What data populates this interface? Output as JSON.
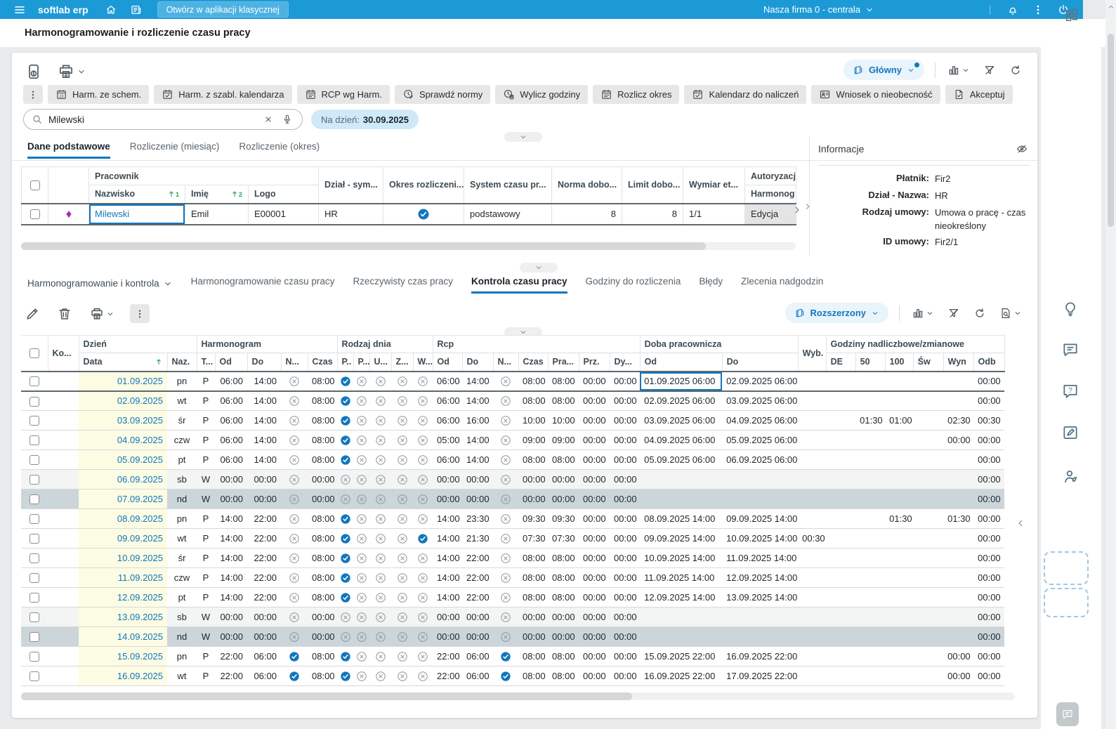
{
  "topbar": {
    "brand": "softlab erp",
    "classic_button": "Otwórz w aplikacji klasycznej",
    "company": "Nasza firma 0 - centrala"
  },
  "page": {
    "title": "Harmonogramowanie i rozliczenie czasu pracy"
  },
  "toolbar_main": {
    "view_label": "Główny",
    "buttons": [
      {
        "name": "harm-ze-schem-button",
        "icon": "calendar-number-icon",
        "label": "Harm. ze schem."
      },
      {
        "name": "harm-z-szabl-kalendarza-button",
        "icon": "calendar-check-icon",
        "label": "Harm. z szabl. kalendarza"
      },
      {
        "name": "rcp-wg-harm-button",
        "icon": "calendar-grid-icon",
        "label": "RCP wg Harm."
      },
      {
        "name": "sprawdz-normy-button",
        "icon": "clock-check-icon",
        "label": "Sprawdź normy"
      },
      {
        "name": "wylicz-godziny-button",
        "icon": "clock-calculator-icon",
        "label": "Wylicz godziny"
      },
      {
        "name": "rozlicz-okres-button",
        "icon": "calendar-grid-icon",
        "label": "Rozlicz okres"
      },
      {
        "name": "kalendarz-do-naliczen-button",
        "icon": "calendar-check-icon",
        "label": "Kalendarz do naliczeń"
      },
      {
        "name": "wniosek-o-nieobecnosc-button",
        "icon": "person-card-icon",
        "label": "Wniosek o nieobecność"
      },
      {
        "name": "akceptuj-button",
        "icon": "document-check-icon",
        "label": "Akceptuj"
      }
    ]
  },
  "search": {
    "value": "Milewski",
    "chip_label": "Na dzień:",
    "chip_value": "30.09.2025"
  },
  "upper_tabs": [
    {
      "label": "Dane podstawowe",
      "active": true
    },
    {
      "label": "Rozliczenie (miesiąc)",
      "active": false
    },
    {
      "label": "Rozliczenie (okres)",
      "active": false
    }
  ],
  "employee_table": {
    "group_header": "Pracownik",
    "headers": {
      "nazwisko": "Nazwisko",
      "imie": "Imię",
      "logo": "Logo",
      "dzial": "Dział - sym...",
      "okres": "Okres rozliczeni...",
      "system": "System czasu pr...",
      "norma": "Norma dobo...",
      "limit": "Limit dobo...",
      "wymiar": "Wymiar et...",
      "autoryzacja_g": "Autoryzacj",
      "autoryzacja_s": "Harmonog"
    },
    "sort": {
      "nazwisko": "1",
      "imie": "2"
    },
    "row": {
      "nazwisko": "Milewski",
      "imie": "Emil",
      "logo": "E00001",
      "dzial": "HR",
      "okres_check": true,
      "system": "podstawowy",
      "norma": "8",
      "limit": "8",
      "wymiar": "1/1",
      "autoryzacja": "Edycja"
    }
  },
  "info_panel": {
    "title": "Informacje",
    "fields": [
      {
        "label": "Płatnik:",
        "value": "Fir2"
      },
      {
        "label": "Dział - Nazwa:",
        "value": "HR"
      },
      {
        "label": "Rodzaj umowy:",
        "value": "Umowa o pracę - czas nieokreślony"
      },
      {
        "label": "ID umowy:",
        "value": "Fir2/1"
      }
    ]
  },
  "section": {
    "selector_label": "Harmonogramowanie i kontrola",
    "tabs": [
      {
        "label": "Harmonogramowanie czasu pracy",
        "active": false
      },
      {
        "label": "Rzeczywisty czas pracy",
        "active": false
      },
      {
        "label": "Kontrola czasu pracy",
        "active": true
      },
      {
        "label": "Godziny do rozliczenia",
        "active": false
      },
      {
        "label": "Błędy",
        "active": false
      },
      {
        "label": "Zlecenia nadgodzin",
        "active": false
      }
    ],
    "view_label": "Rozszerzony"
  },
  "schedule_table": {
    "groups": {
      "dzien": "Dzień",
      "harmonogram": "Harmonogram",
      "rodzaj": "Rodzaj dnia",
      "rcp": "Rcp",
      "doba": "Doba pracownicza",
      "wyb": "Wyb.",
      "nadgodziny": "Godziny nadliczbowe/zmianowe"
    },
    "cols": {
      "ko": "Ko...",
      "data": "Data",
      "naz": "Naz.",
      "t": "T...",
      "od": "Od",
      "do": "Do",
      "n": "N...",
      "czas": "Czas",
      "p1": "P..",
      "p2": "P...",
      "u": "U...",
      "z": "Z...",
      "w": "W...",
      "pra": "Pra...",
      "prz": "Prz.",
      "dy": "Dy...",
      "de": "DE",
      "p50": "50",
      "p100": "100",
      "sw": "Św",
      "wyn": "Wyn",
      "odb": "Odb"
    },
    "rows": [
      {
        "data": "01.09.2025",
        "naz": "pn",
        "t": "P",
        "h_od": "06:00",
        "h_do": "14:00",
        "h_n": false,
        "h_czas": "08:00",
        "rd": [
          true,
          false,
          false,
          false,
          false
        ],
        "r_od": "06:00",
        "r_do": "14:00",
        "r_n": false,
        "r_czas": "08:00",
        "pra": "08:00",
        "prz": "00:00",
        "dy": "00:00",
        "d_od": "01.09.2025 06:00",
        "d_do": "02.09.2025 06:00",
        "wyb": "",
        "de": "",
        "p50": "",
        "p100": "",
        "sw": "",
        "wyn": "",
        "odb": "00:00",
        "kind": "work",
        "current": true
      },
      {
        "data": "02.09.2025",
        "naz": "wt",
        "t": "P",
        "h_od": "06:00",
        "h_do": "14:00",
        "h_n": false,
        "h_czas": "08:00",
        "rd": [
          true,
          false,
          false,
          false,
          false
        ],
        "r_od": "06:00",
        "r_do": "14:00",
        "r_n": false,
        "r_czas": "08:00",
        "pra": "08:00",
        "prz": "00:00",
        "dy": "00:00",
        "d_od": "02.09.2025 06:00",
        "d_do": "03.09.2025 06:00",
        "wyb": "",
        "de": "",
        "p50": "",
        "p100": "",
        "sw": "",
        "wyn": "",
        "odb": "00:00",
        "kind": "work",
        "current": false
      },
      {
        "data": "03.09.2025",
        "naz": "śr",
        "t": "P",
        "h_od": "06:00",
        "h_do": "14:00",
        "h_n": false,
        "h_czas": "08:00",
        "rd": [
          true,
          false,
          false,
          false,
          false
        ],
        "r_od": "06:00",
        "r_do": "16:00",
        "r_n": false,
        "r_czas": "10:00",
        "pra": "10:00",
        "prz": "00:00",
        "dy": "00:00",
        "d_od": "03.09.2025 06:00",
        "d_do": "04.09.2025 06:00",
        "wyb": "",
        "de": "",
        "p50": "01:30",
        "p100": "01:00",
        "sw": "",
        "wyn": "02:30",
        "odb": "00:30",
        "kind": "work",
        "current": false
      },
      {
        "data": "04.09.2025",
        "naz": "czw",
        "t": "P",
        "h_od": "06:00",
        "h_do": "14:00",
        "h_n": false,
        "h_czas": "08:00",
        "rd": [
          true,
          false,
          false,
          false,
          false
        ],
        "r_od": "05:00",
        "r_do": "14:00",
        "r_n": false,
        "r_czas": "09:00",
        "pra": "09:00",
        "prz": "00:00",
        "dy": "00:00",
        "d_od": "04.09.2025 06:00",
        "d_do": "05.09.2025 06:00",
        "wyb": "",
        "de": "",
        "p50": "",
        "p100": "",
        "sw": "",
        "wyn": "00:00",
        "odb": "00:00",
        "kind": "work",
        "current": false
      },
      {
        "data": "05.09.2025",
        "naz": "pt",
        "t": "P",
        "h_od": "06:00",
        "h_do": "14:00",
        "h_n": false,
        "h_czas": "08:00",
        "rd": [
          true,
          false,
          false,
          false,
          false
        ],
        "r_od": "06:00",
        "r_do": "14:00",
        "r_n": false,
        "r_czas": "08:00",
        "pra": "08:00",
        "prz": "00:00",
        "dy": "00:00",
        "d_od": "05.09.2025 06:00",
        "d_do": "06.09.2025 06:00",
        "wyb": "",
        "de": "",
        "p50": "",
        "p100": "",
        "sw": "",
        "wyn": "",
        "odb": "00:00",
        "kind": "work",
        "current": false
      },
      {
        "data": "06.09.2025",
        "naz": "sb",
        "t": "W",
        "h_od": "00:00",
        "h_do": "00:00",
        "h_n": false,
        "h_czas": "00:00",
        "rd": [
          false,
          false,
          false,
          false,
          false
        ],
        "r_od": "00:00",
        "r_do": "00:00",
        "r_n": false,
        "r_czas": "00:00",
        "pra": "00:00",
        "prz": "00:00",
        "dy": "00:00",
        "d_od": "",
        "d_do": "",
        "wyb": "",
        "de": "",
        "p50": "",
        "p100": "",
        "sw": "",
        "wyn": "",
        "odb": "00:00",
        "kind": "sat",
        "current": false
      },
      {
        "data": "07.09.2025",
        "naz": "nd",
        "t": "W",
        "h_od": "00:00",
        "h_do": "00:00",
        "h_n": false,
        "h_czas": "00:00",
        "rd": [
          false,
          false,
          false,
          false,
          false
        ],
        "r_od": "00:00",
        "r_do": "00:00",
        "r_n": false,
        "r_czas": "00:00",
        "pra": "00:00",
        "prz": "00:00",
        "dy": "00:00",
        "d_od": "",
        "d_do": "",
        "wyb": "",
        "de": "",
        "p50": "",
        "p100": "",
        "sw": "",
        "wyn": "",
        "odb": "00:00",
        "kind": "sun",
        "current": false
      },
      {
        "data": "08.09.2025",
        "naz": "pn",
        "t": "P",
        "h_od": "14:00",
        "h_do": "22:00",
        "h_n": false,
        "h_czas": "08:00",
        "rd": [
          true,
          false,
          false,
          false,
          false
        ],
        "r_od": "14:00",
        "r_do": "23:30",
        "r_n": false,
        "r_czas": "09:30",
        "pra": "09:30",
        "prz": "00:00",
        "dy": "00:00",
        "d_od": "08.09.2025 14:00",
        "d_do": "09.09.2025 14:00",
        "wyb": "",
        "de": "",
        "p50": "",
        "p100": "01:30",
        "sw": "",
        "wyn": "01:30",
        "odb": "00:00",
        "kind": "work",
        "current": false
      },
      {
        "data": "09.09.2025",
        "naz": "wt",
        "t": "P",
        "h_od": "14:00",
        "h_do": "22:00",
        "h_n": false,
        "h_czas": "08:00",
        "rd": [
          true,
          false,
          false,
          false,
          true
        ],
        "r_od": "14:00",
        "r_do": "21:30",
        "r_n": false,
        "r_czas": "07:30",
        "pra": "07:30",
        "prz": "00:00",
        "dy": "00:00",
        "d_od": "09.09.2025 14:00",
        "d_do": "10.09.2025 14:00",
        "wyb": "00:30",
        "de": "",
        "p50": "",
        "p100": "",
        "sw": "",
        "wyn": "",
        "odb": "00:00",
        "kind": "work",
        "current": false
      },
      {
        "data": "10.09.2025",
        "naz": "śr",
        "t": "P",
        "h_od": "14:00",
        "h_do": "22:00",
        "h_n": false,
        "h_czas": "08:00",
        "rd": [
          true,
          false,
          false,
          false,
          false
        ],
        "r_od": "14:00",
        "r_do": "22:00",
        "r_n": false,
        "r_czas": "08:00",
        "pra": "08:00",
        "prz": "00:00",
        "dy": "00:00",
        "d_od": "10.09.2025 14:00",
        "d_do": "11.09.2025 14:00",
        "wyb": "",
        "de": "",
        "p50": "",
        "p100": "",
        "sw": "",
        "wyn": "",
        "odb": "00:00",
        "kind": "work",
        "current": false
      },
      {
        "data": "11.09.2025",
        "naz": "czw",
        "t": "P",
        "h_od": "14:00",
        "h_do": "22:00",
        "h_n": false,
        "h_czas": "08:00",
        "rd": [
          true,
          false,
          false,
          false,
          false
        ],
        "r_od": "14:00",
        "r_do": "22:00",
        "r_n": false,
        "r_czas": "08:00",
        "pra": "08:00",
        "prz": "00:00",
        "dy": "00:00",
        "d_od": "11.09.2025 14:00",
        "d_do": "12.09.2025 14:00",
        "wyb": "",
        "de": "",
        "p50": "",
        "p100": "",
        "sw": "",
        "wyn": "",
        "odb": "00:00",
        "kind": "work",
        "current": false
      },
      {
        "data": "12.09.2025",
        "naz": "pt",
        "t": "P",
        "h_od": "14:00",
        "h_do": "22:00",
        "h_n": false,
        "h_czas": "08:00",
        "rd": [
          true,
          false,
          false,
          false,
          false
        ],
        "r_od": "14:00",
        "r_do": "22:00",
        "r_n": false,
        "r_czas": "08:00",
        "pra": "08:00",
        "prz": "00:00",
        "dy": "00:00",
        "d_od": "12.09.2025 14:00",
        "d_do": "13.09.2025 14:00",
        "wyb": "",
        "de": "",
        "p50": "",
        "p100": "",
        "sw": "",
        "wyn": "",
        "odb": "00:00",
        "kind": "work",
        "current": false
      },
      {
        "data": "13.09.2025",
        "naz": "sb",
        "t": "W",
        "h_od": "00:00",
        "h_do": "00:00",
        "h_n": false,
        "h_czas": "00:00",
        "rd": [
          false,
          false,
          false,
          false,
          false
        ],
        "r_od": "00:00",
        "r_do": "00:00",
        "r_n": false,
        "r_czas": "00:00",
        "pra": "00:00",
        "prz": "00:00",
        "dy": "00:00",
        "d_od": "",
        "d_do": "",
        "wyb": "",
        "de": "",
        "p50": "",
        "p100": "",
        "sw": "",
        "wyn": "",
        "odb": "00:00",
        "kind": "sat",
        "current": false
      },
      {
        "data": "14.09.2025",
        "naz": "nd",
        "t": "W",
        "h_od": "00:00",
        "h_do": "00:00",
        "h_n": false,
        "h_czas": "00:00",
        "rd": [
          false,
          false,
          false,
          false,
          false
        ],
        "r_od": "00:00",
        "r_do": "00:00",
        "r_n": false,
        "r_czas": "00:00",
        "pra": "00:00",
        "prz": "00:00",
        "dy": "00:00",
        "d_od": "",
        "d_do": "",
        "wyb": "",
        "de": "",
        "p50": "",
        "p100": "",
        "sw": "",
        "wyn": "",
        "odb": "00:00",
        "kind": "sun",
        "current": false
      },
      {
        "data": "15.09.2025",
        "naz": "pn",
        "t": "P",
        "h_od": "22:00",
        "h_do": "06:00",
        "h_n": true,
        "h_czas": "08:00",
        "rd": [
          true,
          false,
          false,
          false,
          false
        ],
        "r_od": "22:00",
        "r_do": "06:00",
        "r_n": true,
        "r_czas": "08:00",
        "pra": "08:00",
        "prz": "00:00",
        "dy": "00:00",
        "d_od": "15.09.2025 22:00",
        "d_do": "16.09.2025 22:00",
        "wyb": "",
        "de": "",
        "p50": "",
        "p100": "",
        "sw": "",
        "wyn": "00:00",
        "odb": "00:00",
        "kind": "work",
        "current": false
      },
      {
        "data": "16.09.2025",
        "naz": "wt",
        "t": "P",
        "h_od": "22:00",
        "h_do": "06:00",
        "h_n": true,
        "h_czas": "08:00",
        "rd": [
          true,
          false,
          false,
          false,
          false
        ],
        "r_od": "22:00",
        "r_do": "06:00",
        "r_n": true,
        "r_czas": "08:00",
        "pra": "08:00",
        "prz": "00:00",
        "dy": "00:00",
        "d_od": "16.09.2025 22:00",
        "d_do": "17.09.2025 22:00",
        "wyb": "",
        "de": "",
        "p50": "",
        "p100": "",
        "sw": "",
        "wyn": "00:00",
        "odb": "00:00",
        "kind": "work",
        "current": false
      }
    ]
  },
  "colors": {
    "accent": "#1277bd",
    "topbar": "#1c9ad6",
    "date_cell_bg": "#fcfbe4",
    "saturday_row_bg": "#f3f4f4",
    "sunday_row_bg": "#cbd5da",
    "chip_bg": "#cfe9f8",
    "check_icon": "#1277bd",
    "cross_icon": "#8f979c",
    "diamond_indicator": "#a62bb5",
    "sort_arrow": "#2f9e52"
  }
}
